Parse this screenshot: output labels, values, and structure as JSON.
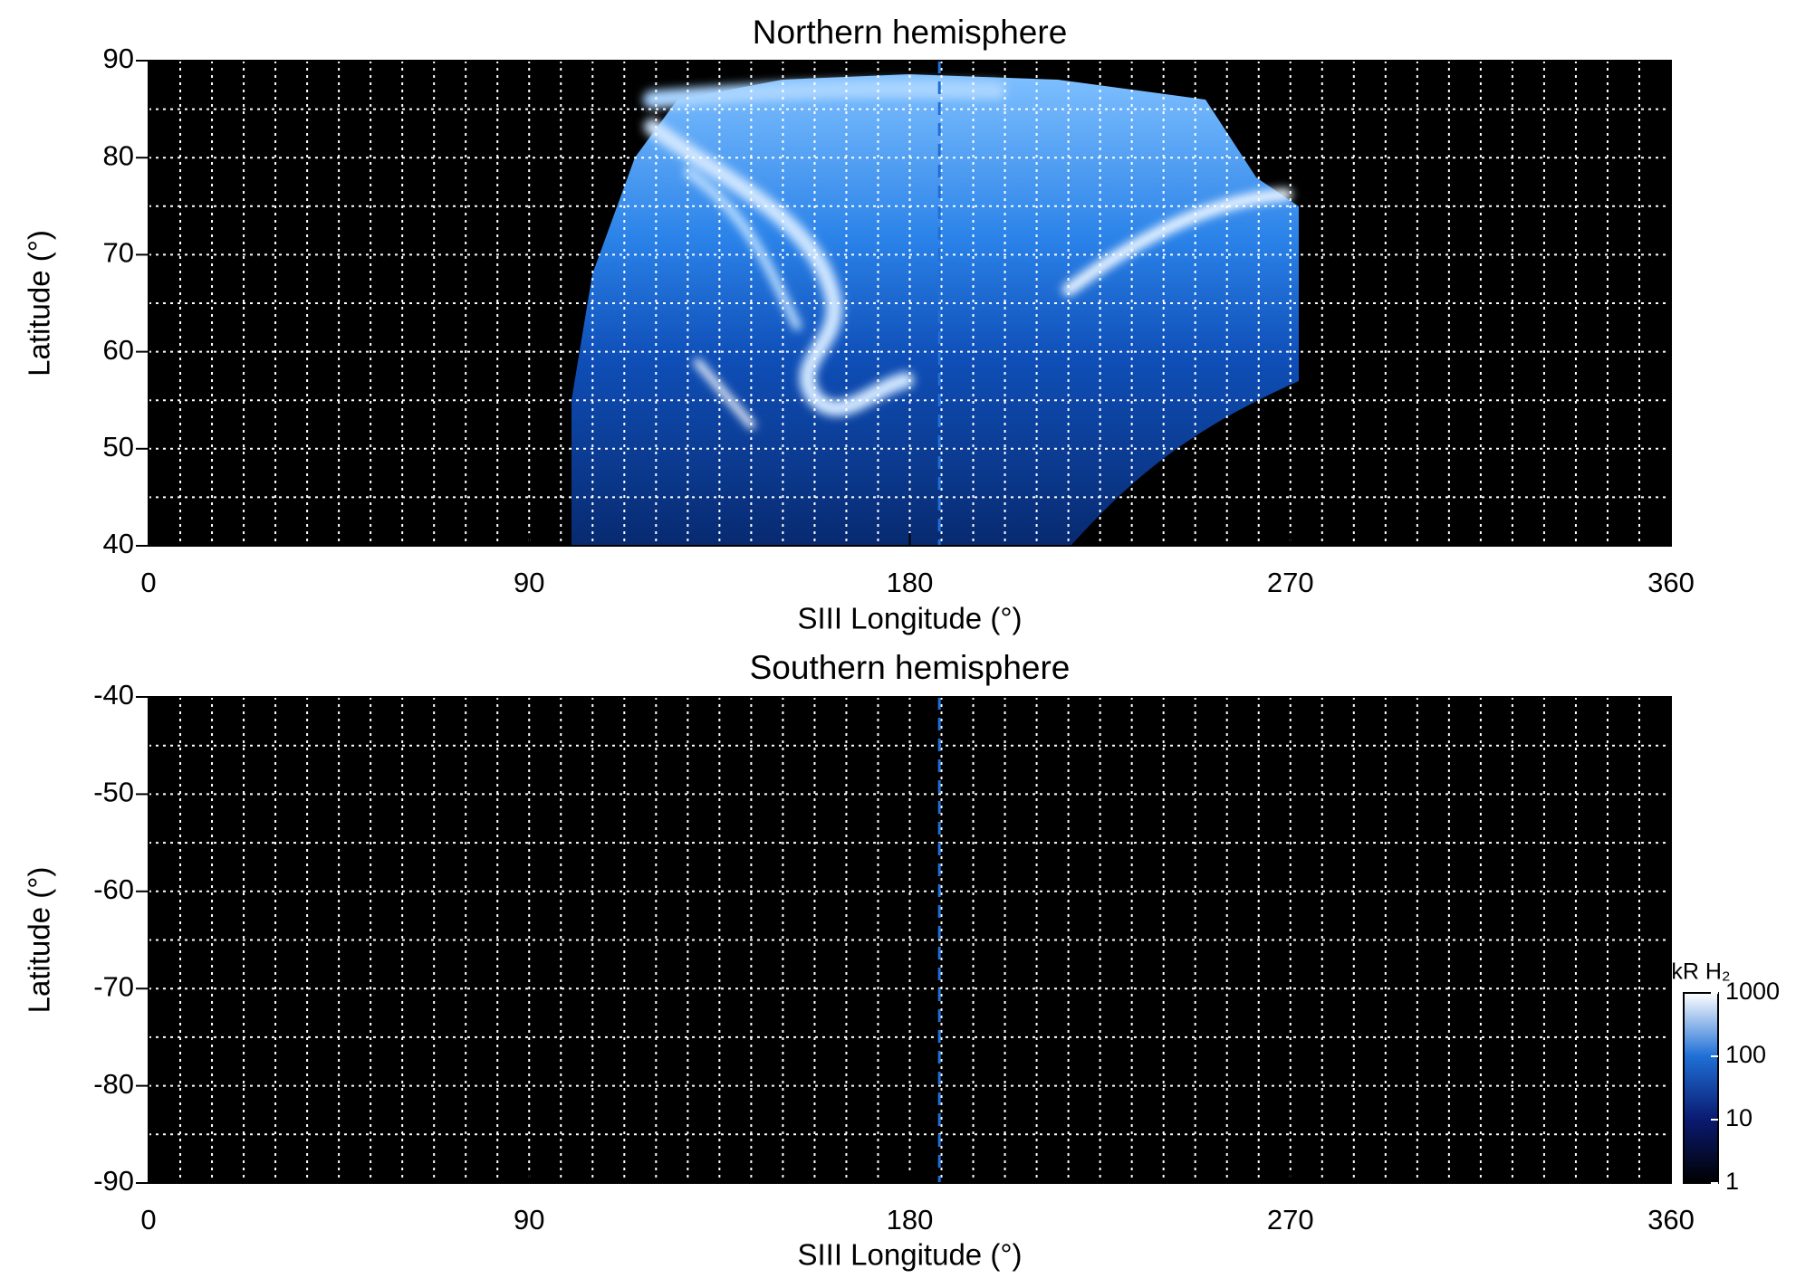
{
  "chart_data": [
    {
      "type": "image",
      "title": "Northern hemisphere",
      "xlabel": "SIII Longitude (°)",
      "ylabel": "Latitude (°)",
      "xlim": [
        0,
        360
      ],
      "ylim": [
        40,
        90
      ],
      "xticks": [
        0,
        90,
        180,
        270,
        360
      ],
      "yticks": [
        40,
        50,
        60,
        70,
        80,
        90
      ],
      "xgrid": [
        0,
        7.5,
        15,
        22.5,
        30,
        37.5,
        45,
        52.5,
        60,
        67.5,
        75,
        82.5,
        90,
        97.5,
        105,
        112.5,
        120,
        127.5,
        135,
        142.5,
        150,
        157.5,
        165,
        172.5,
        180,
        187.5,
        195,
        202.5,
        210,
        217.5,
        225,
        232.5,
        240,
        247.5,
        255,
        262.5,
        270,
        277.5,
        285,
        292.5,
        300,
        307.5,
        315,
        322.5,
        330,
        337.5,
        345,
        352.5,
        360
      ],
      "ygrid": [
        40,
        45,
        50,
        55,
        60,
        65,
        70,
        75,
        80,
        85,
        90
      ],
      "grid_color": "#ffffff",
      "vline": 187,
      "vline_color": "#1f6fd6"
    },
    {
      "type": "image",
      "title": "Southern hemisphere",
      "xlabel": "SIII Longitude (°)",
      "ylabel": "Latitude (°)",
      "xlim": [
        0,
        360
      ],
      "ylim": [
        -90,
        -40
      ],
      "xticks": [
        0,
        90,
        180,
        270,
        360
      ],
      "yticks": [
        -90,
        -80,
        -70,
        -60,
        -50,
        -40
      ],
      "xgrid": [
        0,
        7.5,
        15,
        22.5,
        30,
        37.5,
        45,
        52.5,
        60,
        67.5,
        75,
        82.5,
        90,
        97.5,
        105,
        112.5,
        120,
        127.5,
        135,
        142.5,
        150,
        157.5,
        165,
        172.5,
        180,
        187.5,
        195,
        202.5,
        210,
        217.5,
        225,
        232.5,
        240,
        247.5,
        255,
        262.5,
        270,
        277.5,
        285,
        292.5,
        300,
        307.5,
        315,
        322.5,
        330,
        337.5,
        345,
        352.5,
        360
      ],
      "ygrid": [
        -90,
        -85,
        -80,
        -75,
        -70,
        -65,
        -60,
        -55,
        -50,
        -45,
        -40
      ],
      "grid_color": "#ffffff",
      "vline": 187,
      "vline_color": "#1f6fd6",
      "colorbar": {
        "label": "kR H₂",
        "lim": [
          1,
          1000
        ],
        "ticks": [
          1,
          10,
          100,
          1000
        ],
        "log": true,
        "colors": [
          "#000000",
          "#0a1a70",
          "#1f6fd6",
          "#ffffff"
        ]
      }
    }
  ]
}
